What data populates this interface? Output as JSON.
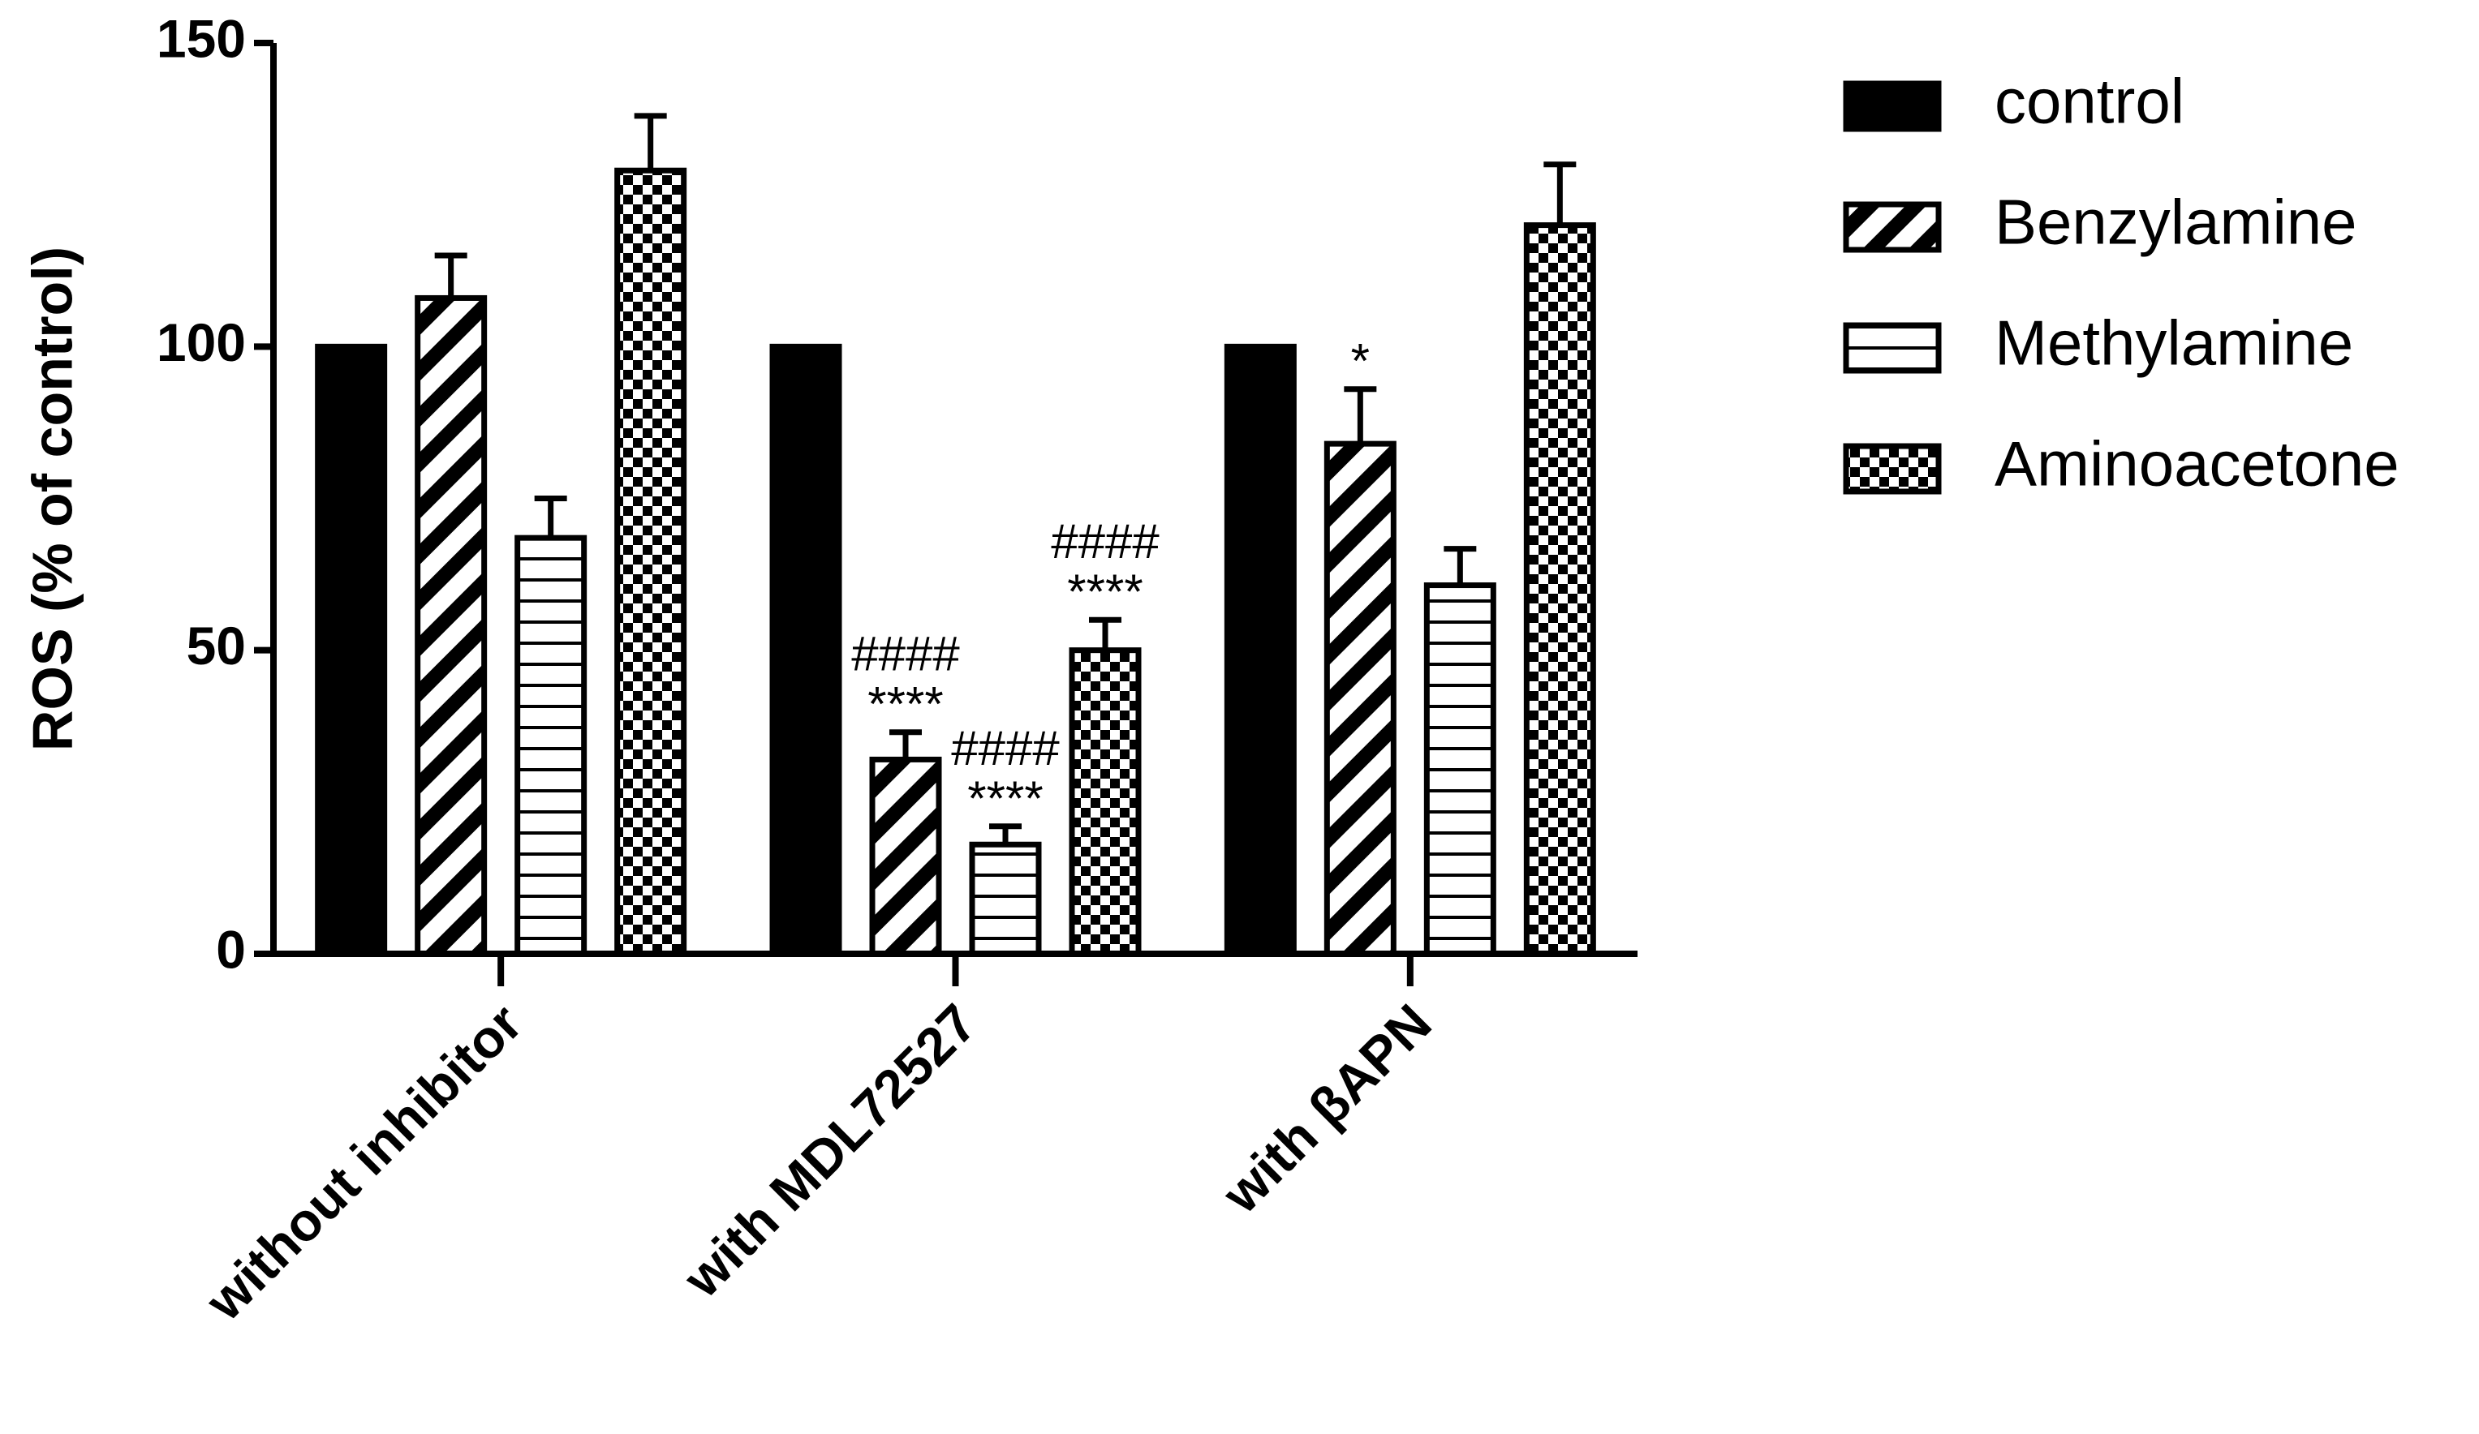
{
  "chart_data": {
    "type": "bar",
    "y_label": "ROS (% of control)",
    "categories": [
      "without inhibitor",
      "with MDL72527",
      "with βAPN"
    ],
    "ylim": [
      0,
      150
    ],
    "yticks": [
      0,
      50,
      100,
      150
    ],
    "series": [
      {
        "name": "control",
        "color": "#000000",
        "pattern": "solid",
        "values": [
          100,
          100,
          100
        ]
      },
      {
        "name": "Benzylamine",
        "color": "#000000",
        "pattern": "diagonal",
        "values": [
          108,
          32,
          84
        ],
        "errors": [
          7,
          4.5,
          9
        ],
        "annotations": [
          null,
          [
            "####",
            "****"
          ],
          [
            "*"
          ]
        ]
      },
      {
        "name": "Methylamine",
        "color": "#000000",
        "pattern": "horizontal",
        "values": [
          68.5,
          18,
          60.7
        ],
        "errors": [
          6.5,
          3,
          6
        ],
        "annotations": [
          null,
          [
            "####",
            "****"
          ],
          null
        ]
      },
      {
        "name": "Aminoacetone",
        "color": "#000000",
        "pattern": "checker",
        "values": [
          129,
          50,
          120
        ],
        "errors": [
          9,
          5,
          10
        ],
        "annotations": [
          null,
          [
            "####",
            "****"
          ],
          null
        ]
      }
    ]
  }
}
